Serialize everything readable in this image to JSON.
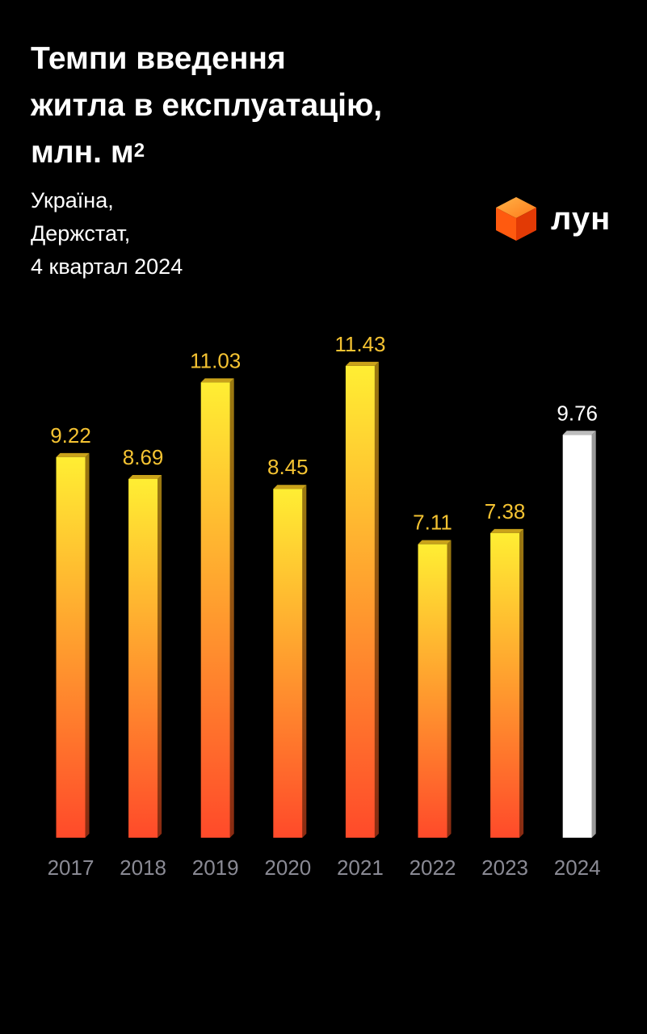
{
  "header": {
    "title_lines": [
      "Темпи введення",
      "житла в експлуатацію,",
      "млн. м"
    ],
    "title_superscript": "2",
    "subtitle_lines": [
      "Україна,",
      "Держстат,",
      "4 квартал 2024"
    ]
  },
  "logo": {
    "text": "лун",
    "icon": "orange-cube-icon"
  },
  "colors": {
    "background": "#000000",
    "bar_top": "#ffee33",
    "bar_bottom": "#ff4a2a",
    "value_label": "#f5c332",
    "highlight_bar": "#ffffff",
    "axis_label": "#8a8a94"
  },
  "chart_data": {
    "type": "bar",
    "title": "Темпи введення житла в експлуатацію, млн. м²",
    "categories": [
      "2017",
      "2018",
      "2019",
      "2020",
      "2021",
      "2022",
      "2023",
      "2024"
    ],
    "values": [
      9.22,
      8.69,
      11.03,
      8.45,
      11.43,
      7.11,
      7.38,
      9.76
    ],
    "value_labels": [
      "9.22",
      "8.69",
      "11.03",
      "8.45",
      "11.43",
      "7.11",
      "7.38",
      "9.76"
    ],
    "highlighted_category": "2024",
    "xlabel": "",
    "ylabel": "",
    "ylim": [
      0,
      11.43
    ],
    "grid": false,
    "legend": "none"
  }
}
